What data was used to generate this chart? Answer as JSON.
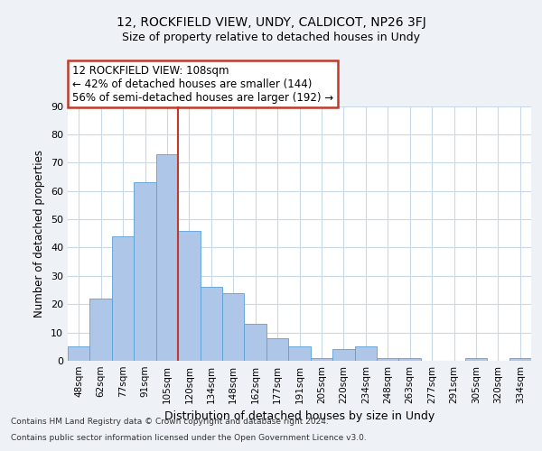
{
  "title1": "12, ROCKFIELD VIEW, UNDY, CALDICOT, NP26 3FJ",
  "title2": "Size of property relative to detached houses in Undy",
  "xlabel": "Distribution of detached houses by size in Undy",
  "ylabel": "Number of detached properties",
  "categories": [
    "48sqm",
    "62sqm",
    "77sqm",
    "91sqm",
    "105sqm",
    "120sqm",
    "134sqm",
    "148sqm",
    "162sqm",
    "177sqm",
    "191sqm",
    "205sqm",
    "220sqm",
    "234sqm",
    "248sqm",
    "263sqm",
    "277sqm",
    "291sqm",
    "305sqm",
    "320sqm",
    "334sqm"
  ],
  "values": [
    5,
    22,
    44,
    63,
    73,
    46,
    26,
    24,
    13,
    8,
    5,
    1,
    4,
    5,
    1,
    1,
    0,
    0,
    1,
    0,
    1
  ],
  "bar_color": "#aec6e8",
  "bar_edge_color": "#5a9fd4",
  "highlight_color": "#c0392b",
  "pct_smaller": 42,
  "n_smaller": 144,
  "pct_larger_semi": 56,
  "n_larger_semi": 192,
  "annotation_box_color": "#c0392b",
  "vline_pos": 4.5,
  "ylim": [
    0,
    90
  ],
  "yticks": [
    0,
    10,
    20,
    30,
    40,
    50,
    60,
    70,
    80,
    90
  ],
  "grid_color": "#c8d8e8",
  "footer1": "Contains HM Land Registry data © Crown copyright and database right 2024.",
  "footer2": "Contains public sector information licensed under the Open Government Licence v3.0.",
  "bg_color": "#eef2f7",
  "plot_bg_color": "#ffffff"
}
